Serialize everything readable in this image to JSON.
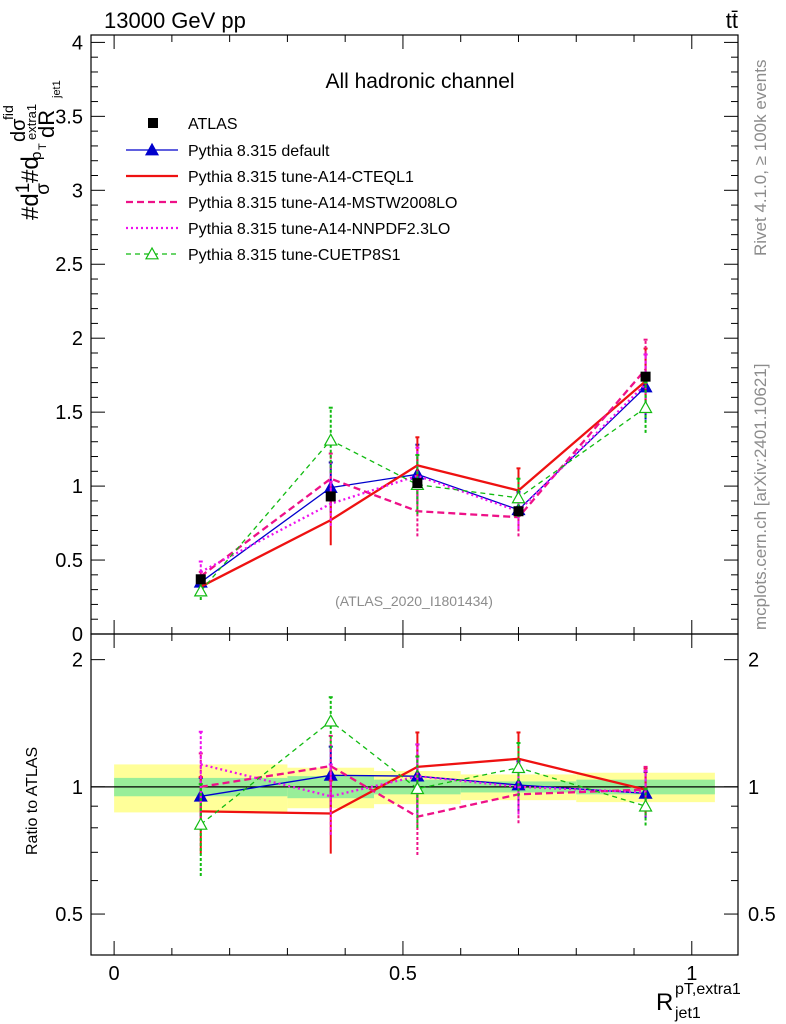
{
  "chart_data": {
    "type": "line",
    "header_left": "13000 GeV pp",
    "header_right": "tt̄",
    "title": "All hadronic channel",
    "analysis_label": "(ATLAS_2020_I1801434)",
    "side_label_top": "Rivet 4.1.0, ≥ 100k events",
    "side_label_bottom": "mcplots.cern.ch [arXiv:2401.10621]",
    "ylabel_main": "#d1/σ#dσ^fid/dR^pT,extra1_jet1",
    "ylabel_main_parts": {
      "a": "#d",
      "b": "1",
      "c": "σ",
      "d": "#d",
      "e": "dσ",
      "f": "fid",
      "g": "p",
      "h": "extra1",
      "i": "T",
      "j": "dR",
      "k": "jet1"
    },
    "ylabel_ratio": "Ratio to ATLAS",
    "xlabel": {
      "main": "R",
      "sup": "pT,extra1",
      "sub": "jet1"
    },
    "x": [
      0.15,
      0.375,
      0.525,
      0.7,
      0.92
    ],
    "bins": [
      [
        0.0,
        0.3
      ],
      [
        0.3,
        0.45
      ],
      [
        0.45,
        0.6
      ],
      [
        0.6,
        0.8
      ],
      [
        0.8,
        1.04
      ]
    ],
    "xlim": [
      -0.04,
      1.08
    ],
    "ylim_main": [
      0.0,
      4.05
    ],
    "ylim_ratio": [
      0.4,
      2.3
    ],
    "xticks": [
      {
        "v": 0.0,
        "label": "0"
      },
      {
        "v": 0.5,
        "label": "0.5"
      },
      {
        "v": 1.0,
        "label": "1"
      }
    ],
    "yticks_main": [
      {
        "v": 0.5,
        "label": "0.5"
      },
      {
        "v": 1.0,
        "label": "1"
      },
      {
        "v": 1.5,
        "label": "1.5"
      },
      {
        "v": 2.0,
        "label": "2"
      },
      {
        "v": 2.5,
        "label": "2.5"
      },
      {
        "v": 3.0,
        "label": "3"
      },
      {
        "v": 3.5,
        "label": "3.5"
      },
      {
        "v": 4.0,
        "label": "4"
      },
      {
        "v": 0.0,
        "label": "0"
      }
    ],
    "yticks_ratio": [
      {
        "v": 0.5,
        "label": "0.5"
      },
      {
        "v": 1.0,
        "label": "1"
      },
      {
        "v": 2.0,
        "label": "2"
      }
    ],
    "data": {
      "name": "ATLAS",
      "values": [
        0.37,
        0.93,
        1.02,
        0.83,
        1.74
      ],
      "band_yellow": [
        0.13,
        0.11,
        0.09,
        0.07,
        0.08
      ],
      "band_green": [
        0.05,
        0.06,
        0.04,
        0.03,
        0.04
      ]
    },
    "series": [
      {
        "name": "Pythia 8.315 default",
        "color": "#0000cc",
        "dash": "",
        "marker": "triangle-filled",
        "width": 1.3,
        "values": [
          0.35,
          0.99,
          1.08,
          0.84,
          1.67
        ],
        "err": [
          0.03,
          0.17,
          0.2,
          0.12,
          0.22
        ],
        "ratio": [
          0.95,
          1.065,
          1.06,
          1.01,
          0.965
        ],
        "ratio_err": [
          0.1,
          0.18,
          0.2,
          0.14,
          0.12
        ]
      },
      {
        "name": "Pythia 8.315 tune-A14-CTEQL1",
        "color": "#ee1111",
        "dash": "",
        "marker": "none",
        "width": 2.3,
        "values": [
          0.32,
          0.77,
          1.14,
          0.97,
          1.71
        ],
        "err": [
          0.03,
          0.17,
          0.19,
          0.15,
          0.22
        ],
        "ratio": [
          0.875,
          0.865,
          1.115,
          1.165,
          0.985
        ],
        "ratio_err": [
          0.18,
          0.17,
          0.23,
          0.18,
          0.12
        ]
      },
      {
        "name": "Pythia 8.315 tune-A14-MSTW2008LO",
        "color": "#ee1188",
        "dash": "7,4",
        "marker": "none",
        "width": 2.3,
        "values": [
          0.39,
          1.05,
          0.83,
          0.79,
          1.79
        ],
        "err": [
          0.03,
          0.17,
          0.17,
          0.13,
          0.2
        ],
        "ratio": [
          1.0,
          1.12,
          0.85,
          0.96,
          0.985
        ],
        "ratio_err": [
          0.2,
          0.2,
          0.16,
          0.14,
          0.13
        ]
      },
      {
        "name": "Pythia 8.315 tune-A14-NNPDF2.3LO",
        "color": "#ee11ee",
        "dash": "2,3",
        "marker": "none",
        "width": 2.3,
        "values": [
          0.42,
          0.88,
          1.07,
          0.83,
          1.69
        ],
        "err": [
          0.07,
          0.15,
          0.19,
          0.12,
          0.2
        ],
        "ratio": [
          1.13,
          0.95,
          1.06,
          1.0,
          0.97
        ],
        "ratio_err": [
          0.22,
          0.18,
          0.2,
          0.14,
          0.12
        ]
      },
      {
        "name": "Pythia 8.315 tune-CUETP8S1",
        "color": "#11bb11",
        "dash": "5,4",
        "marker": "triangle-open",
        "width": 1.3,
        "values": [
          0.29,
          1.31,
          1.01,
          0.92,
          1.53
        ],
        "err": [
          0.06,
          0.22,
          0.2,
          0.13,
          0.17
        ],
        "ratio": [
          0.815,
          1.43,
          0.99,
          1.11,
          0.9
        ],
        "ratio_err": [
          0.2,
          0.2,
          0.19,
          0.16,
          0.09
        ]
      }
    ]
  }
}
